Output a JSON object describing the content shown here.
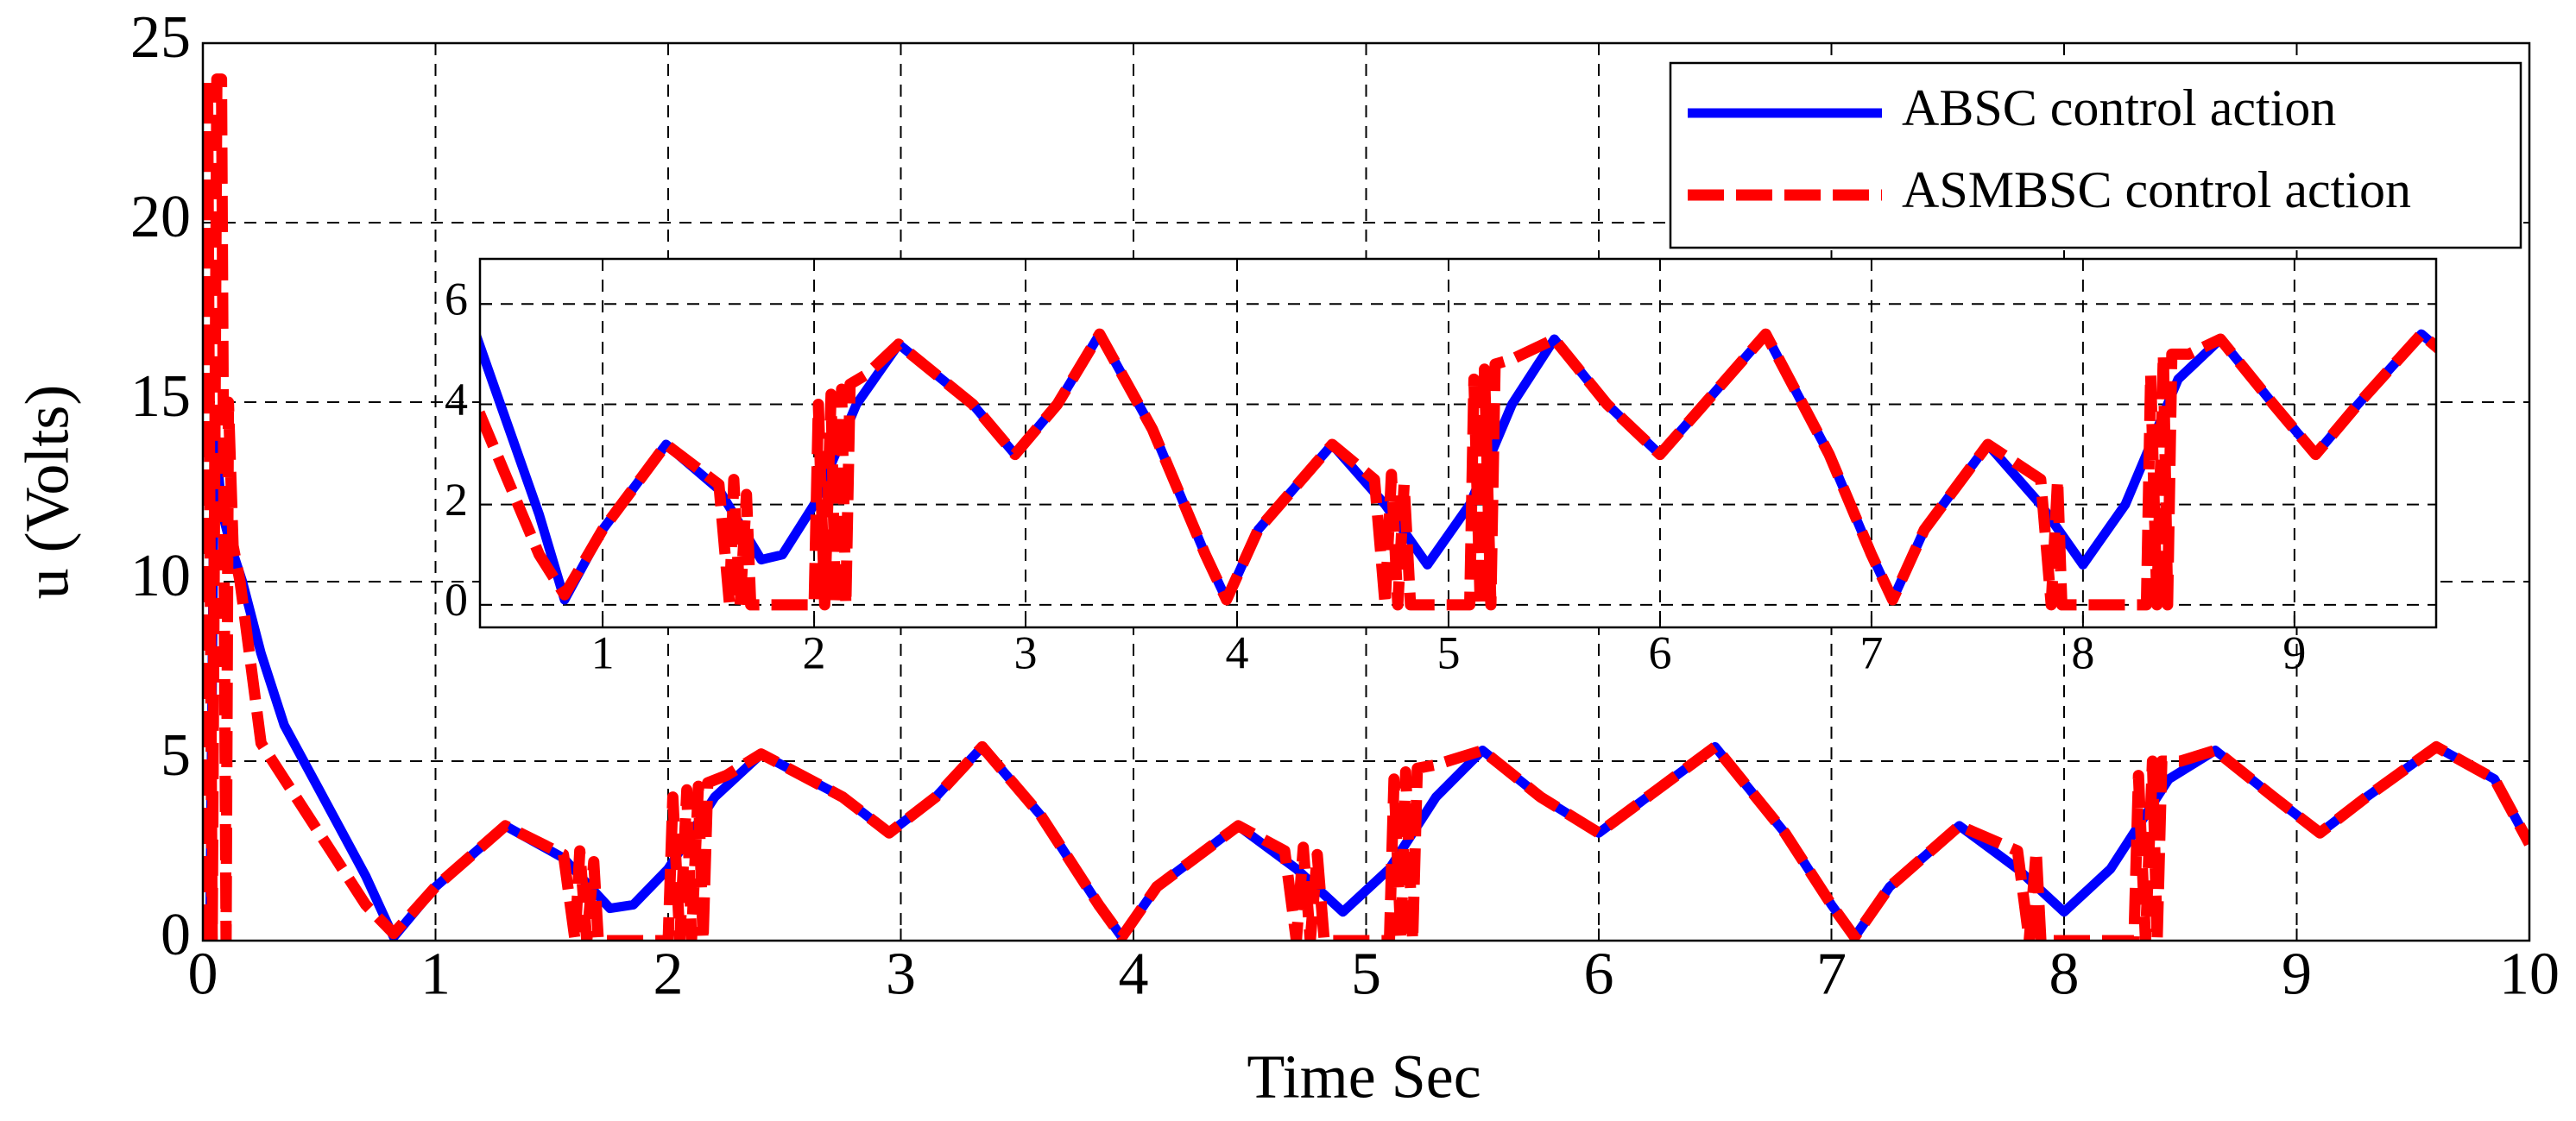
{
  "chart_data": {
    "type": "line",
    "xlabel": "Time Sec",
    "ylabel": "u (Volts)",
    "xlim": [
      0,
      10
    ],
    "ylim": [
      0,
      25
    ],
    "xticks": [
      0,
      1,
      2,
      3,
      4,
      5,
      6,
      7,
      8,
      9,
      10
    ],
    "yticks": [
      0,
      5,
      10,
      15,
      20,
      25
    ],
    "grid": true,
    "legend": "upper right",
    "inset": {
      "xlim": [
        0.42,
        9.67
      ],
      "ylim": [
        -0.45,
        6.9
      ],
      "xticks": [
        1,
        2,
        3,
        4,
        5,
        6,
        7,
        8,
        9
      ],
      "yticks": [
        0,
        2,
        4,
        6
      ]
    },
    "series": [
      {
        "name": "ABSC control action",
        "color": "#0000ff",
        "style": "solid",
        "x": [
          0,
          0.03,
          0.05,
          0.08,
          0.12,
          0.17,
          0.25,
          0.35,
          0.5,
          0.7,
          0.82,
          1.0,
          1.3,
          1.55,
          1.75,
          1.85,
          2.0,
          2.2,
          2.4,
          2.75,
          2.95,
          3.15,
          3.35,
          3.6,
          3.85,
          3.95,
          4.1,
          4.45,
          4.7,
          4.9,
          5.1,
          5.3,
          5.5,
          5.75,
          6.0,
          6.25,
          6.5,
          6.8,
          7.0,
          7.1,
          7.25,
          7.55,
          7.8,
          8.0,
          8.2,
          8.45,
          8.65,
          8.9,
          9.1,
          9.3,
          9.6,
          9.85,
          10
        ],
        "values": [
          0,
          0,
          14.5,
          12,
          11,
          10,
          8,
          6,
          4.2,
          1.8,
          0.1,
          1.5,
          3.2,
          2.3,
          0.9,
          1,
          2,
          4,
          5.2,
          4,
          3,
          4,
          5.4,
          3.5,
          1,
          0.1,
          1.5,
          3.2,
          2,
          0.8,
          2,
          4,
          5.3,
          4,
          3,
          4.2,
          5.4,
          3,
          1,
          0.1,
          1.5,
          3.2,
          2,
          0.8,
          2,
          4.5,
          5.3,
          4,
          3,
          4,
          5.4,
          4.5,
          2.7
        ]
      },
      {
        "name": "ASMBSC control action",
        "color": "#ff0000",
        "style": "dashed",
        "x": [
          0,
          0.02,
          0.04,
          0.06,
          0.08,
          0.1,
          0.11,
          0.13,
          0.16,
          0.2,
          0.25,
          0.35,
          0.55,
          0.7,
          0.82,
          1.0,
          1.3,
          1.55,
          1.6,
          1.62,
          1.65,
          1.68,
          1.7,
          2.0,
          2.02,
          2.05,
          2.08,
          2.1,
          2.13,
          2.15,
          2.17,
          2.25,
          2.4,
          2.75,
          2.95,
          3.15,
          3.35,
          3.6,
          3.85,
          3.95,
          4.1,
          4.45,
          4.65,
          4.7,
          4.73,
          4.76,
          4.79,
          4.82,
          5.1,
          5.12,
          5.15,
          5.17,
          5.2,
          5.22,
          5.3,
          5.5,
          5.75,
          6.0,
          6.25,
          6.5,
          6.8,
          7.0,
          7.1,
          7.25,
          7.55,
          7.8,
          7.85,
          7.88,
          7.9,
          8.3,
          8.32,
          8.35,
          8.38,
          8.4,
          8.42,
          8.5,
          8.65,
          8.9,
          9.1,
          9.3,
          9.6,
          9.85,
          10
        ],
        "values": [
          0,
          24,
          0,
          24,
          24,
          0,
          15,
          11,
          10,
          8,
          5.5,
          4.5,
          2.5,
          1,
          0.2,
          1.5,
          3.2,
          2.4,
          0,
          2.5,
          0,
          2.2,
          0,
          0,
          4,
          0,
          4.2,
          0,
          4.3,
          0,
          4.4,
          4.6,
          5.2,
          4,
          3,
          4,
          5.4,
          3.5,
          1,
          0.1,
          1.5,
          3.2,
          2.5,
          0,
          2.6,
          0,
          2.4,
          0,
          0,
          4.5,
          0,
          4.7,
          0,
          4.8,
          4.9,
          5.3,
          4,
          3,
          4.2,
          5.4,
          3,
          1,
          0.1,
          1.5,
          3.2,
          2.5,
          0,
          2.5,
          0,
          0,
          4.6,
          0,
          5,
          0,
          5,
          5,
          5.3,
          4,
          3,
          4,
          5.4,
          4.5,
          2.7
        ]
      }
    ]
  }
}
